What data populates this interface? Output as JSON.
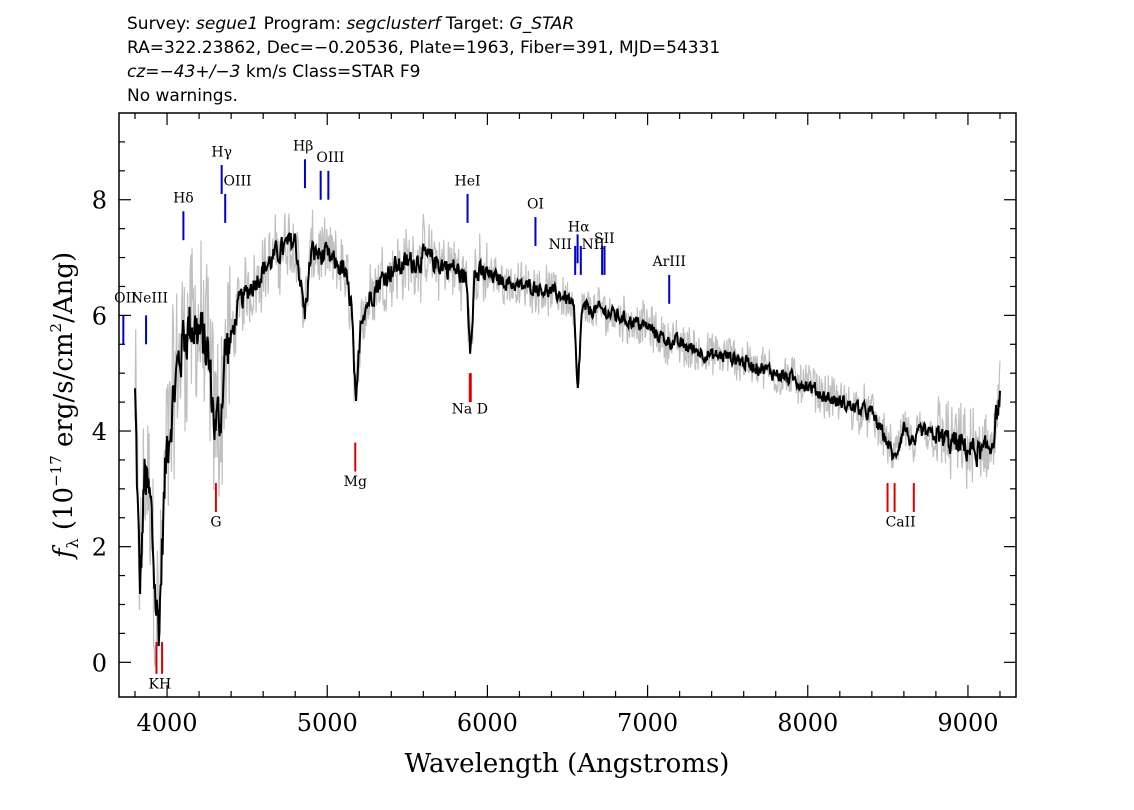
{
  "header": {
    "line1": {
      "survey_label": "Survey: ",
      "survey": "segue1",
      "program_label": " Program: ",
      "program": "segclusterf",
      "target_label": " Target: ",
      "target": "G_STAR"
    },
    "line2": "RA=322.23862, Dec=−0.20536, Plate=1963, Fiber=391, MJD=54331",
    "line3": {
      "cz": "cz=−43+/−3",
      "unit_class": " km/s Class=STAR F9"
    },
    "line4": "No warnings."
  },
  "chart_data": {
    "type": "line",
    "title": "",
    "xlabel": "Wavelength (Angstroms)",
    "ylabel_parts": {
      "f": "f",
      "sub": "λ",
      "pre": " (10",
      "exp": "−17",
      "mid": " erg/s/cm",
      "exp2": "2",
      "post": "/Ang)"
    },
    "xlim": [
      3700,
      9300
    ],
    "ylim": [
      -0.6,
      9.5
    ],
    "x_ticks": [
      4000,
      5000,
      6000,
      7000,
      8000,
      9000
    ],
    "y_ticks": [
      0,
      2,
      4,
      6,
      8
    ],
    "colors": {
      "flux": "#000000",
      "error": "#c0c0c0",
      "emission": "#0000cc",
      "absorption": "#dd0000"
    },
    "series": [
      {
        "type": "continuum",
        "values": [
          [
            3800,
            4.6
          ],
          [
            3830,
            1.2
          ],
          [
            3860,
            3.2
          ],
          [
            3900,
            2.6
          ],
          [
            3930,
            1.0
          ],
          [
            3950,
            0.6
          ],
          [
            3975,
            2.4
          ],
          [
            4000,
            3.8
          ],
          [
            4050,
            4.8
          ],
          [
            4100,
            5.6
          ],
          [
            4150,
            5.9
          ],
          [
            4200,
            5.7
          ],
          [
            4250,
            5.4
          ],
          [
            4300,
            4.1
          ],
          [
            4330,
            4.2
          ],
          [
            4360,
            5.3
          ],
          [
            4400,
            5.6
          ],
          [
            4450,
            6.2
          ],
          [
            4500,
            6.4
          ],
          [
            4600,
            6.8
          ],
          [
            4700,
            7.1
          ],
          [
            4800,
            7.3
          ],
          [
            4860,
            6.0
          ],
          [
            4900,
            7.1
          ],
          [
            5000,
            7.0
          ],
          [
            5100,
            6.8
          ],
          [
            5150,
            6.2
          ],
          [
            5180,
            4.3
          ],
          [
            5210,
            6.0
          ],
          [
            5300,
            6.5
          ],
          [
            5400,
            6.8
          ],
          [
            5500,
            6.9
          ],
          [
            5600,
            7.0
          ],
          [
            5700,
            6.9
          ],
          [
            5800,
            6.8
          ],
          [
            5870,
            6.6
          ],
          [
            5893,
            5.5
          ],
          [
            5920,
            6.7
          ],
          [
            6000,
            6.7
          ],
          [
            6100,
            6.6
          ],
          [
            6200,
            6.5
          ],
          [
            6300,
            6.5
          ],
          [
            6400,
            6.4
          ],
          [
            6500,
            6.3
          ],
          [
            6540,
            6.1
          ],
          [
            6563,
            4.6
          ],
          [
            6590,
            6.1
          ],
          [
            6700,
            6.1
          ],
          [
            6800,
            6.0
          ],
          [
            6900,
            5.9
          ],
          [
            7000,
            5.8
          ],
          [
            7100,
            5.6
          ],
          [
            7200,
            5.5
          ],
          [
            7300,
            5.4
          ],
          [
            7400,
            5.3
          ],
          [
            7500,
            5.3
          ],
          [
            7600,
            5.2
          ],
          [
            7700,
            5.1
          ],
          [
            7800,
            5.0
          ],
          [
            7900,
            4.9
          ],
          [
            8000,
            4.8
          ],
          [
            8100,
            4.6
          ],
          [
            8200,
            4.5
          ],
          [
            8300,
            4.4
          ],
          [
            8400,
            4.3
          ],
          [
            8498,
            3.8
          ],
          [
            8542,
            3.5
          ],
          [
            8600,
            4.1
          ],
          [
            8662,
            3.7
          ],
          [
            8700,
            4.0
          ],
          [
            8800,
            3.9
          ],
          [
            8900,
            3.8
          ],
          [
            9000,
            3.7
          ],
          [
            9100,
            3.6
          ],
          [
            9150,
            3.8
          ],
          [
            9200,
            4.6
          ]
        ]
      }
    ],
    "emission_lines": [
      {
        "label": "OII",
        "x": 3727,
        "ymin": 5.5,
        "ymax": 6.0
      },
      {
        "label": "NeIII",
        "x": 3869,
        "ymin": 5.5,
        "ymax": 6.0
      },
      {
        "label": "Hδ",
        "x": 4102,
        "ymin": 7.3,
        "ymax": 7.8
      },
      {
        "label": "Hγ",
        "x": 4341,
        "ymin": 8.1,
        "ymax": 8.6
      },
      {
        "label": "OIII",
        "x": 4363,
        "ymin": 7.6,
        "ymax": 8.1
      },
      {
        "label": "Hβ",
        "x": 4861,
        "ymin": 8.2,
        "ymax": 8.7
      },
      {
        "label": "OIII",
        "x": 4959,
        "ymin": 8.0,
        "ymax": 8.5
      },
      {
        "label": "OIII",
        "x": 5007,
        "ymin": 8.0,
        "ymax": 8.5
      },
      {
        "label": "HeI",
        "x": 5876,
        "ymin": 7.6,
        "ymax": 8.1
      },
      {
        "label": "OI",
        "x": 6300,
        "ymin": 7.2,
        "ymax": 7.7
      },
      {
        "label": "NII",
        "x": 6548,
        "ymin": 6.7,
        "ymax": 7.2
      },
      {
        "label": "Hα",
        "x": 6563,
        "ymin": 6.9,
        "ymax": 7.4
      },
      {
        "label": "NII",
        "x": 6583,
        "ymin": 6.7,
        "ymax": 7.2
      },
      {
        "label": "SII",
        "x": 6716,
        "ymin": 6.7,
        "ymax": 7.2
      },
      {
        "label": "SII",
        "x": 6731,
        "ymin": 6.7,
        "ymax": 7.2
      },
      {
        "label": "ArIII",
        "x": 7135,
        "ymin": 6.2,
        "ymax": 6.7
      }
    ],
    "absorption_lines": [
      {
        "label": "K",
        "x": 3934,
        "ymin": -0.2,
        "ymax": 0.35
      },
      {
        "label": "H",
        "x": 3969,
        "ymin": -0.2,
        "ymax": 0.35
      },
      {
        "label": "G",
        "x": 4305,
        "ymin": 2.6,
        "ymax": 3.1
      },
      {
        "label": "Mg",
        "x": 5175,
        "ymin": 3.3,
        "ymax": 3.8
      },
      {
        "label": "Na",
        "x": 5890,
        "ymin": 4.5,
        "ymax": 5.0
      },
      {
        "label": "D",
        "x": 5896,
        "ymin": 4.5,
        "ymax": 5.0
      },
      {
        "label": "CaII",
        "x": 8498,
        "ymin": 2.6,
        "ymax": 3.1
      },
      {
        "label": "CaII",
        "x": 8542,
        "ymin": 2.6,
        "ymax": 3.1
      },
      {
        "label": "CaII",
        "x": 8662,
        "ymin": 2.6,
        "ymax": 3.1
      }
    ],
    "line_text_labels": [
      {
        "text": "OII",
        "x": 3740,
        "y": 6.22,
        "anchor": "middle"
      },
      {
        "text": "NeIII",
        "x": 3890,
        "y": 6.22,
        "anchor": "middle"
      },
      {
        "text": "Hδ",
        "x": 4102,
        "y": 7.95,
        "anchor": "middle"
      },
      {
        "text": "Hγ",
        "x": 4341,
        "y": 8.75,
        "anchor": "middle"
      },
      {
        "text": "OIII",
        "x": 4440,
        "y": 8.25,
        "anchor": "middle"
      },
      {
        "text": "Hβ",
        "x": 4850,
        "y": 8.85,
        "anchor": "middle"
      },
      {
        "text": "OIII",
        "x": 5020,
        "y": 8.65,
        "anchor": "middle"
      },
      {
        "text": "HeI",
        "x": 5876,
        "y": 8.25,
        "anchor": "middle"
      },
      {
        "text": "OI",
        "x": 6300,
        "y": 7.85,
        "anchor": "middle"
      },
      {
        "text": "NII",
        "x": 6455,
        "y": 7.15,
        "anchor": "middle"
      },
      {
        "text": "Hα",
        "x": 6570,
        "y": 7.45,
        "anchor": "middle"
      },
      {
        "text": "NII",
        "x": 6660,
        "y": 7.15,
        "anchor": "middle"
      },
      {
        "text": "SII",
        "x": 6730,
        "y": 7.25,
        "anchor": "middle"
      },
      {
        "text": "ArIII",
        "x": 7135,
        "y": 6.85,
        "anchor": "middle"
      },
      {
        "text": "KH",
        "x": 3955,
        "y": -0.45,
        "anchor": "middle"
      },
      {
        "text": "G",
        "x": 4305,
        "y": 2.35,
        "anchor": "middle"
      },
      {
        "text": "Mg",
        "x": 5175,
        "y": 3.05,
        "anchor": "middle"
      },
      {
        "text": "Na D",
        "x": 5890,
        "y": 4.3,
        "anchor": "middle"
      },
      {
        "text": "CaII",
        "x": 8580,
        "y": 2.35,
        "anchor": "middle"
      }
    ]
  }
}
